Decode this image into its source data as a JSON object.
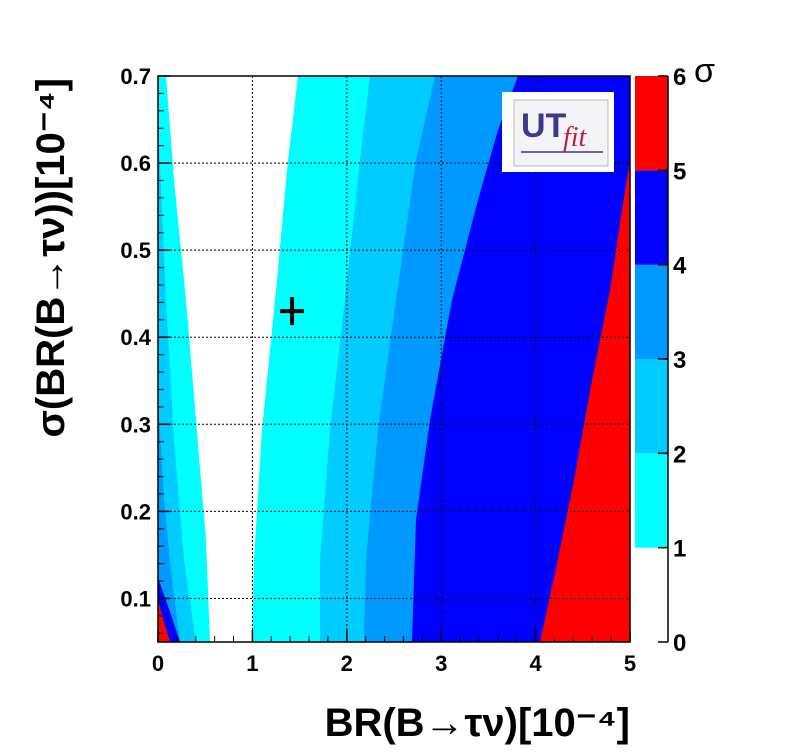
{
  "chart_data": {
    "type": "heatmap",
    "xlabel": "BR(B→τν)[10⁻⁴]",
    "ylabel": "σ(BR(B→τν))[10⁻⁴]",
    "zlabel": "σ",
    "xlim": [
      0,
      5
    ],
    "ylim": [
      0.05,
      0.7
    ],
    "zlim": [
      0,
      6
    ],
    "x_ticks": [
      "0",
      "1",
      "2",
      "3",
      "4",
      "5"
    ],
    "y_ticks": [
      "0.1",
      "0.2",
      "0.3",
      "0.4",
      "0.5",
      "0.6",
      "0.7"
    ],
    "z_ticks": [
      "0",
      "1",
      "2",
      "3",
      "4",
      "5",
      "6"
    ],
    "grid": true,
    "levels": [
      {
        "range": [
          0,
          1
        ],
        "color": "#ffffff"
      },
      {
        "range": [
          1,
          2
        ],
        "color": "#00ffff"
      },
      {
        "range": [
          2,
          3
        ],
        "color": "#00ccff"
      },
      {
        "range": [
          3,
          4
        ],
        "color": "#0099ff"
      },
      {
        "range": [
          4,
          5
        ],
        "color": "#0000ff"
      },
      {
        "range": [
          5,
          6
        ],
        "color": "#ff0000"
      }
    ],
    "marker": {
      "symbol": "+",
      "x": 1.42,
      "y": 0.43
    },
    "logo": {
      "text_main": "UT",
      "text_sub": "fit"
    }
  }
}
